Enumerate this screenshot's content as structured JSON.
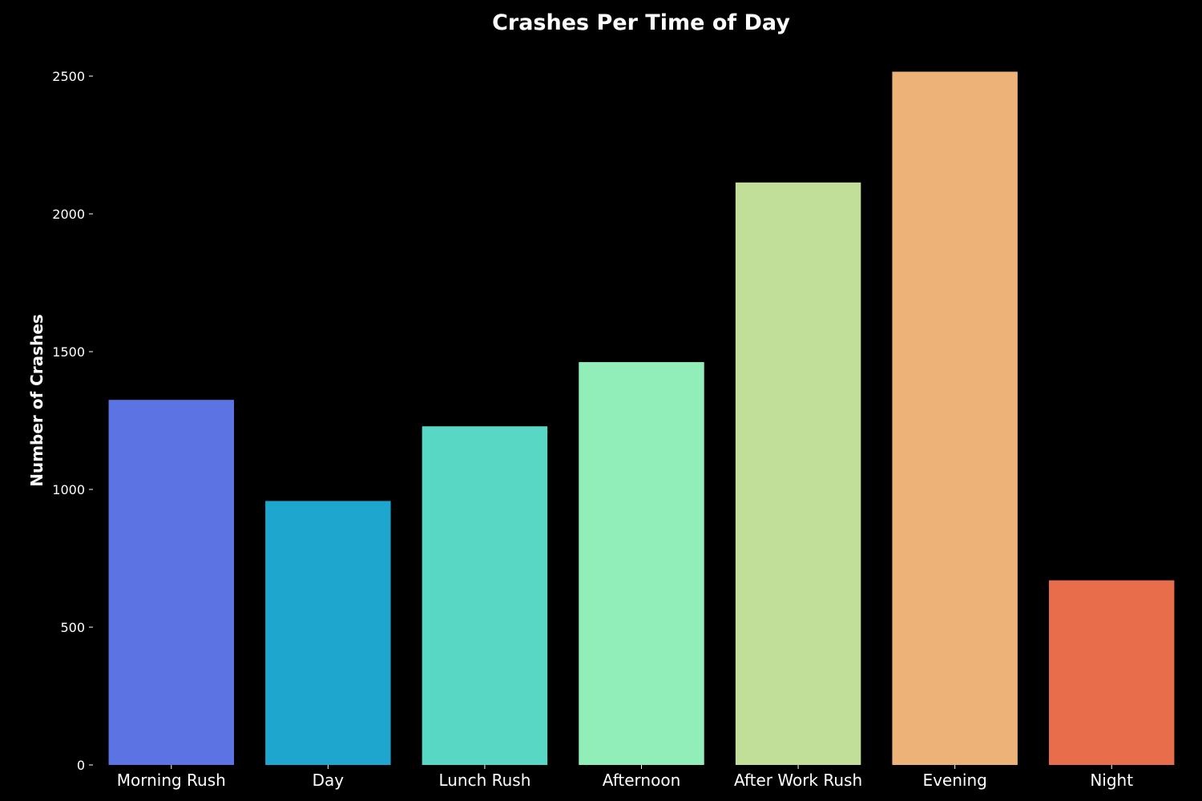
{
  "chart_data": {
    "type": "bar",
    "title": "Crashes Per Time of Day",
    "xlabel": "",
    "ylabel": "Number of Crashes",
    "categories": [
      "Morning Rush",
      "Day",
      "Lunch Rush",
      "Afternoon",
      "After Work Rush",
      "Evening",
      "Night"
    ],
    "values": [
      1325,
      958,
      1229,
      1462,
      2114,
      2516,
      670
    ],
    "colors": [
      "#5b73e3",
      "#1fa6ce",
      "#58d8c4",
      "#92eeb8",
      "#c1df98",
      "#ecb277",
      "#e76d4b"
    ],
    "yticks": [
      "0",
      "500",
      "1000",
      "1500",
      "2000",
      "2500"
    ],
    "ylim": [
      0,
      2600
    ],
    "grid": false,
    "legend": false,
    "background": "#000000"
  }
}
